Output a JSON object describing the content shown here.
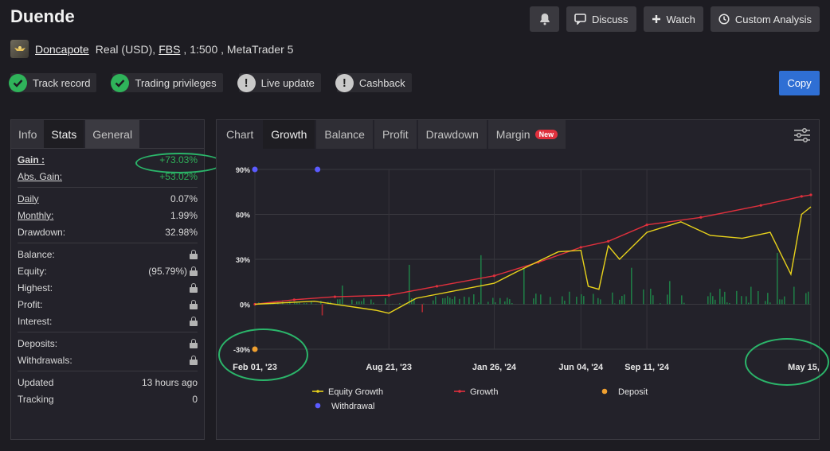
{
  "title": "Duende",
  "actions": {
    "discuss": "Discuss",
    "watch": "Watch",
    "custom_analysis": "Custom Analysis"
  },
  "account": {
    "user": "Doncapote",
    "type": "Real (USD),",
    "broker": "FBS",
    "details": ", 1:500 , MetaTrader 5"
  },
  "badges": [
    {
      "label": "Track record",
      "status": "ok"
    },
    {
      "label": "Trading privileges",
      "status": "ok"
    },
    {
      "label": "Live update",
      "status": "warn"
    },
    {
      "label": "Cashback",
      "status": "warn"
    }
  ],
  "copy_label": "Copy",
  "left_tabs": [
    "Info",
    "Stats",
    "General"
  ],
  "stats": {
    "gain_label": "Gain :",
    "gain": "+73.03%",
    "abs_gain_label": "Abs. Gain:",
    "abs_gain": "+53.02%",
    "daily_label": "Daily",
    "daily": "0.07%",
    "monthly_label": "Monthly:",
    "monthly": "1.99%",
    "drawdown_label": "Drawdown:",
    "drawdown": "32.98%",
    "balance_label": "Balance:",
    "equity_label": "Equity:",
    "equity": "(95.79%)",
    "highest_label": "Highest:",
    "profit_label": "Profit:",
    "interest_label": "Interest:",
    "deposits_label": "Deposits:",
    "withdrawals_label": "Withdrawals:",
    "updated_label": "Updated",
    "updated": "13 hours ago",
    "tracking_label": "Tracking",
    "tracking": "0"
  },
  "chart_tabs": [
    "Chart",
    "Growth",
    "Balance",
    "Profit",
    "Drawdown",
    "Margin"
  ],
  "new_badge": "New",
  "chart_data": {
    "type": "line",
    "y_ticks": [
      "90%",
      "60%",
      "30%",
      "0%",
      "-30%"
    ],
    "y_tick_values": [
      90,
      60,
      30,
      0,
      -30
    ],
    "ylim": [
      -30,
      90
    ],
    "x_ticks": [
      "Feb 01, '23",
      "Aug 21, '23",
      "Jan 26, '24",
      "Jun 04, '24",
      "Sep 11, '24",
      "May 15, '25"
    ],
    "x_tick_dates": [
      "2023-02-01",
      "2023-08-21",
      "2024-01-26",
      "2024-06-04",
      "2024-09-11",
      "2025-05-15"
    ],
    "series": [
      {
        "name": "Growth",
        "color": "#e0303d",
        "points": [
          [
            "2023-02-01",
            0
          ],
          [
            "2023-04-01",
            3
          ],
          [
            "2023-06-01",
            5
          ],
          [
            "2023-08-21",
            6
          ],
          [
            "2023-11-01",
            12
          ],
          [
            "2024-01-26",
            19
          ],
          [
            "2024-04-01",
            28
          ],
          [
            "2024-06-04",
            38
          ],
          [
            "2024-07-15",
            42
          ],
          [
            "2024-09-11",
            53
          ],
          [
            "2024-12-01",
            58
          ],
          [
            "2025-03-01",
            66
          ],
          [
            "2025-05-01",
            72
          ],
          [
            "2025-05-15",
            73
          ]
        ]
      },
      {
        "name": "Equity Growth",
        "color": "#e8d21b",
        "points": [
          [
            "2023-02-01",
            0
          ],
          [
            "2023-05-01",
            2
          ],
          [
            "2023-08-01",
            -4
          ],
          [
            "2023-08-21",
            -6
          ],
          [
            "2023-10-01",
            4
          ],
          [
            "2024-01-26",
            14
          ],
          [
            "2024-03-01",
            22
          ],
          [
            "2024-05-01",
            35
          ],
          [
            "2024-06-04",
            36
          ],
          [
            "2024-06-15",
            12
          ],
          [
            "2024-07-01",
            10
          ],
          [
            "2024-07-15",
            39
          ],
          [
            "2024-08-01",
            30
          ],
          [
            "2024-09-11",
            48
          ],
          [
            "2024-11-01",
            55
          ],
          [
            "2024-12-15",
            46
          ],
          [
            "2025-02-01",
            44
          ],
          [
            "2025-03-15",
            48
          ],
          [
            "2025-04-15",
            20
          ],
          [
            "2025-05-01",
            60
          ],
          [
            "2025-05-15",
            65
          ]
        ]
      }
    ],
    "deposits": [
      [
        "2023-02-01",
        -30
      ]
    ],
    "withdrawals": [
      [
        "2023-02-01",
        90
      ],
      [
        "2023-05-06",
        90
      ]
    ],
    "legend": [
      "Equity Growth",
      "Growth",
      "Deposit",
      "Withdrawal"
    ],
    "colors": {
      "deposit": "#f0a030",
      "withdrawal": "#5b5bff",
      "profit_bars": "#1f7a45",
      "loss_bars": "#b02a33"
    }
  }
}
